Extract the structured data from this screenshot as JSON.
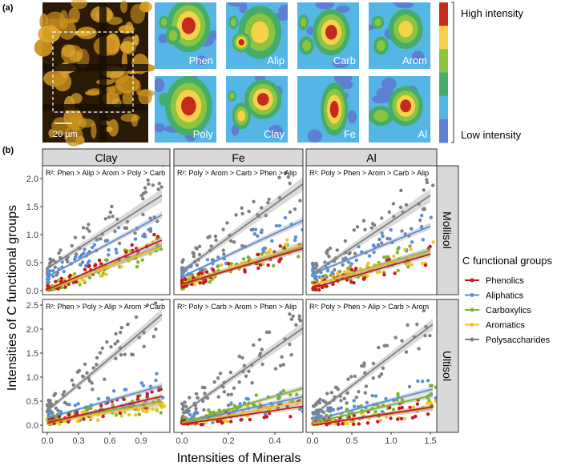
{
  "panel_a": {
    "label": "(a)",
    "scale_bar": "20 µm",
    "maps": [
      "Phen",
      "Alip",
      "Carb",
      "Arom",
      "Poly",
      "Clay",
      "Fe",
      "Al"
    ],
    "colorbar": {
      "high_label": "High intensity",
      "low_label": "Low intensity",
      "colors": [
        "#c62a1f",
        "#f6d24a",
        "#8cc43f",
        "#45ad6a",
        "#55b5e4",
        "#5f7fd3"
      ]
    }
  },
  "panel_b": {
    "label": "(b)",
    "ylabel": "Intensities of C functional groups",
    "xlabel": "Intensities of Minerals",
    "legend": {
      "title": "C functional groups",
      "items": [
        "Phenolics",
        "Aliphatics",
        "Carboxylics",
        "Aromatics",
        "Polysaccharides"
      ]
    },
    "column_strips": [
      "Clay",
      "Fe",
      "Al"
    ],
    "row_strips": [
      "Mollisol",
      "Ultisol"
    ]
  },
  "chart_data": {
    "type": "scatter",
    "series_colors": {
      "Phen": "#c8181c",
      "Alip": "#5b8ed8",
      "Carb": "#7cb623",
      "Arom": "#f3c51c",
      "Poly": "#7d7f84"
    },
    "series_names": {
      "Phen": "Phenolics",
      "Alip": "Aliphatics",
      "Carb": "Carboxylics",
      "Arom": "Aromatics",
      "Poly": "Polysaccharides"
    },
    "grid": false,
    "legend_position": "right",
    "panels": [
      {
        "row": "Mollisol",
        "col": "Clay",
        "annotation": "R²: Phen > Alip > Arom > Poly > Carb",
        "xlim": [
          0,
          1.15
        ],
        "xticks": [
          "0.0",
          "0.3",
          "0.6",
          "0.9"
        ],
        "ylim": [
          0,
          2.1
        ],
        "yticks": [
          "0.0",
          "0.5",
          "1.0",
          "1.5",
          "2.0"
        ],
        "fits": {
          "Poly": [
            [
              0,
              0.4
            ],
            [
              1.1,
              1.7
            ]
          ],
          "Alip": [
            [
              0,
              0.25
            ],
            [
              1.1,
              1.35
            ]
          ],
          "Phen": [
            [
              0,
              0.02
            ],
            [
              1.1,
              0.9
            ]
          ],
          "Arom": [
            [
              0,
              0.02
            ],
            [
              1.1,
              0.78
            ]
          ],
          "Carb": [
            [
              0,
              0.0
            ],
            [
              1.1,
              0.8
            ]
          ]
        }
      },
      {
        "row": "Mollisol",
        "col": "Fe",
        "annotation": "R²: Poly > Arom > Carb > Phen > Alip",
        "xlim": [
          0,
          0.55
        ],
        "xticks": [
          "0.0",
          "0.2",
          "0.4"
        ],
        "ylim": [
          0,
          2.1
        ],
        "yticks": [
          "0.0",
          "0.5",
          "1.0",
          "1.5",
          "2.0"
        ],
        "fits": {
          "Poly": [
            [
              0,
              0.35
            ],
            [
              0.52,
              1.9
            ]
          ],
          "Alip": [
            [
              0,
              0.25
            ],
            [
              0.52,
              1.25
            ]
          ],
          "Phen": [
            [
              0,
              0.12
            ],
            [
              0.52,
              0.75
            ]
          ],
          "Arom": [
            [
              0,
              0.12
            ],
            [
              0.52,
              0.82
            ]
          ],
          "Carb": [
            [
              0,
              0.1
            ],
            [
              0.52,
              0.78
            ]
          ]
        }
      },
      {
        "row": "Mollisol",
        "col": "Al",
        "annotation": "R²: Poly > Phen > Arom > Carb > Alip",
        "xlim": [
          0,
          1.6
        ],
        "xticks": [
          "0.0",
          "0.5",
          "1.0",
          "1.5"
        ],
        "ylim": [
          0,
          2.1
        ],
        "yticks": [
          "0.0",
          "0.5",
          "1.0",
          "1.5",
          "2.0"
        ],
        "fits": {
          "Poly": [
            [
              0,
              0.3
            ],
            [
              1.5,
              1.7
            ]
          ],
          "Alip": [
            [
              0,
              0.3
            ],
            [
              1.5,
              1.15
            ]
          ],
          "Phen": [
            [
              0,
              0.05
            ],
            [
              1.5,
              0.65
            ]
          ],
          "Arom": [
            [
              0,
              0.1
            ],
            [
              1.5,
              0.7
            ]
          ],
          "Carb": [
            [
              0,
              0.1
            ],
            [
              1.5,
              0.72
            ]
          ]
        }
      },
      {
        "row": "Ultisol",
        "col": "Clay",
        "annotation": "R²: Phen > Poly > Alip > Arom > Carb",
        "xlim": [
          0,
          1.15
        ],
        "xticks": [
          "0.0",
          "0.3",
          "0.6",
          "0.9"
        ],
        "ylim": [
          0,
          2.6
        ],
        "yticks": [
          "0.0",
          "0.5",
          "1.0",
          "1.5",
          "2.0",
          "2.5"
        ],
        "fits": {
          "Poly": [
            [
              0,
              0.3
            ],
            [
              1.1,
              2.3
            ]
          ],
          "Alip": [
            [
              0,
              0.15
            ],
            [
              1.1,
              0.82
            ]
          ],
          "Phen": [
            [
              0,
              0.05
            ],
            [
              1.1,
              0.6
            ]
          ],
          "Arom": [
            [
              0,
              0.05
            ],
            [
              1.1,
              0.45
            ]
          ],
          "Carb": [
            [
              0,
              0.08
            ],
            [
              1.1,
              0.5
            ]
          ]
        }
      },
      {
        "row": "Ultisol",
        "col": "Fe",
        "annotation": "R²: Poly > Carb > Arom > Phen > Alip",
        "xlim": [
          0,
          0.55
        ],
        "xticks": [
          "0.0",
          "0.2",
          "0.4"
        ],
        "ylim": [
          0,
          2.6
        ],
        "yticks": [
          "0.0",
          "0.5",
          "1.0",
          "1.5",
          "2.0",
          "2.5"
        ],
        "fits": {
          "Poly": [
            [
              0,
              0.25
            ],
            [
              0.53,
              2.05
            ]
          ],
          "Alip": [
            [
              0,
              0.05
            ],
            [
              0.53,
              0.6
            ]
          ],
          "Phen": [
            [
              0,
              0.02
            ],
            [
              0.53,
              0.4
            ]
          ],
          "Arom": [
            [
              0,
              0.02
            ],
            [
              0.53,
              0.5
            ]
          ],
          "Carb": [
            [
              0,
              0.05
            ],
            [
              0.53,
              0.78
            ]
          ]
        }
      },
      {
        "row": "Ultisol",
        "col": "Al",
        "annotation": "R²: Poly > Phen > Alip > Carb > Arom",
        "xlim": [
          0,
          1.6
        ],
        "xticks": [
          "0.0",
          "0.5",
          "1.0",
          "1.5"
        ],
        "ylim": [
          0,
          2.6
        ],
        "yticks": [
          "0.0",
          "0.5",
          "1.0",
          "1.5",
          "2.0",
          "2.5"
        ],
        "fits": {
          "Poly": [
            [
              0,
              0.2
            ],
            [
              1.53,
              2.1
            ]
          ],
          "Alip": [
            [
              0,
              0.1
            ],
            [
              1.53,
              0.75
            ]
          ],
          "Phen": [
            [
              0,
              0.0
            ],
            [
              1.53,
              0.38
            ]
          ],
          "Arom": [
            [
              0,
              0.02
            ],
            [
              1.53,
              0.35
            ]
          ],
          "Carb": [
            [
              0,
              0.05
            ],
            [
              1.53,
              0.62
            ]
          ]
        }
      }
    ]
  }
}
